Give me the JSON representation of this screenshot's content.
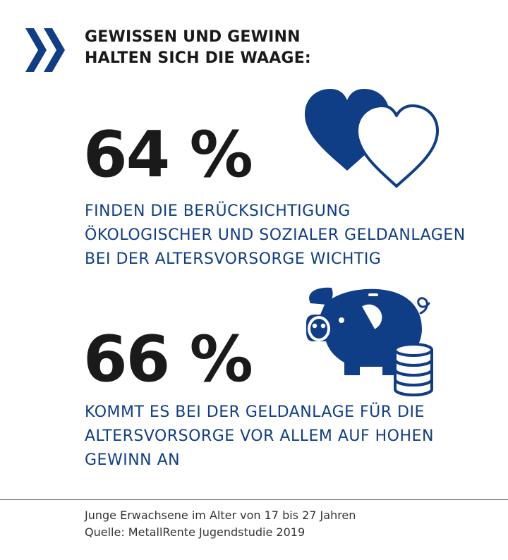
{
  "headline": {
    "line1": "GEWISSEN UND GEWINN",
    "line2": "HALTEN SICH DIE WAAGE:"
  },
  "stats": [
    {
      "value": "64 %",
      "description_lines": [
        "FINDEN DIE BERÜCKSICHTIGUNG",
        "ÖKOLOGISCHER UND SOZIALER GELDANLAGEN",
        "BEI DER ALTERSVORSORGE WICHTIG"
      ],
      "icon": "two-hearts-icon"
    },
    {
      "value": "66 %",
      "description_lines": [
        "KOMMT ES BEI DER GELDANLAGE FÜR DIE",
        "ALTERSVORSORGE VOR ALLEM AUF HOHEN",
        "GEWINN AN"
      ],
      "icon": "piggy-bank-coins-icon"
    }
  ],
  "footer": {
    "line1": "Junge Erwachsene im Alter von 17 bis 27 Jahren",
    "line2": "Quelle: MetallRente Jugendstudie 2019"
  },
  "colors": {
    "brand_blue": "#0f3e87",
    "text_dark": "#1a1a1a",
    "background": "#ffffff"
  }
}
